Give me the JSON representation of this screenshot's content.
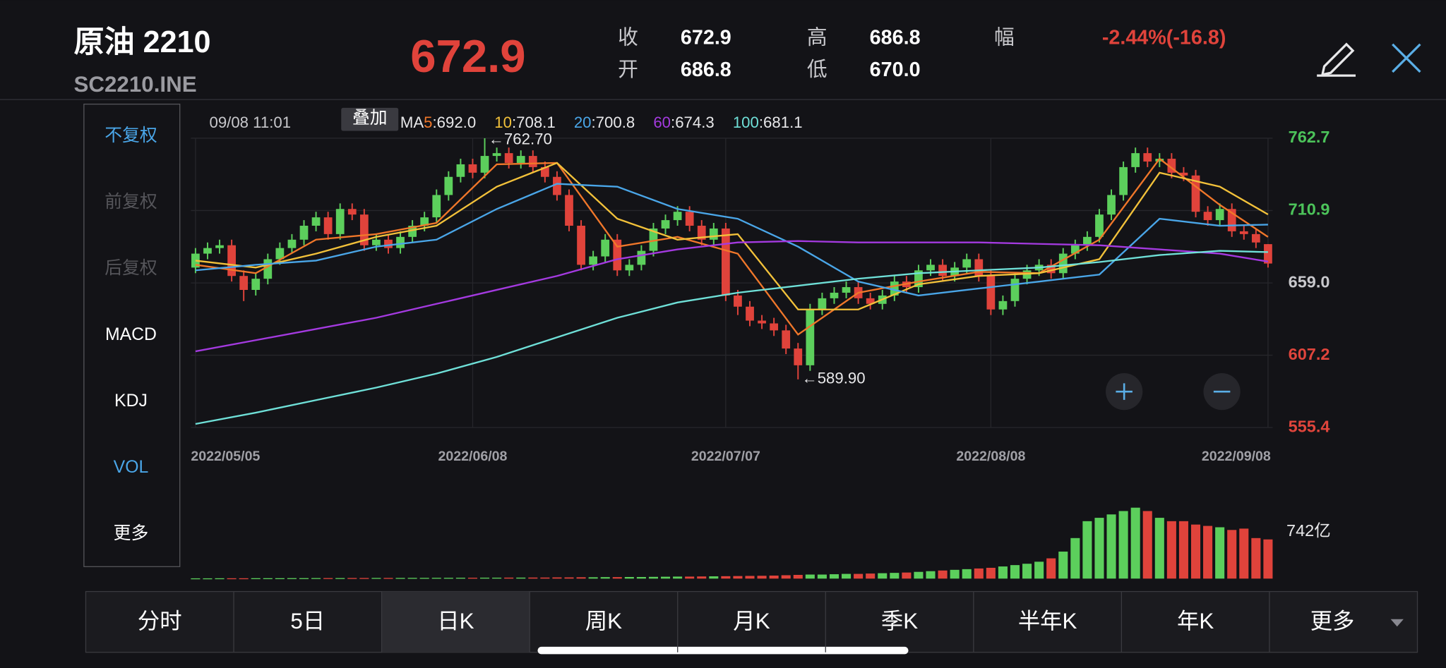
{
  "header": {
    "name": "原油 2210",
    "code": "SC2210.INE",
    "price": "672.9",
    "quote": [
      {
        "label": "收",
        "value": "672.9"
      },
      {
        "label": "开",
        "value": "686.8"
      },
      {
        "label": "高",
        "value": "686.8"
      },
      {
        "label": "低",
        "value": "670.0"
      },
      {
        "label": "幅",
        "value": "-2.44%(-16.8)"
      }
    ]
  },
  "side_menu": [
    "不复权",
    "前复权",
    "后复权",
    "MACD",
    "KDJ",
    "VOL",
    "更多"
  ],
  "info": {
    "time": "09/08 11:01",
    "overlay_button": "叠加",
    "ma_prefix": "MA",
    "ma_separator": ":"
  },
  "chart_data": {
    "type": "candlestick",
    "categories": [
      "2022/05/05",
      null,
      null,
      null,
      null,
      null,
      null,
      null,
      null,
      null,
      null,
      null,
      null,
      null,
      null,
      null,
      null,
      null,
      null,
      null,
      null,
      null,
      null,
      "2022/06/08",
      null,
      null,
      null,
      null,
      null,
      null,
      null,
      null,
      null,
      null,
      null,
      null,
      null,
      null,
      null,
      null,
      null,
      null,
      null,
      null,
      "2022/07/07",
      null,
      null,
      null,
      null,
      null,
      null,
      null,
      null,
      null,
      null,
      null,
      null,
      null,
      null,
      null,
      null,
      null,
      null,
      null,
      null,
      null,
      "2022/08/08",
      null,
      null,
      null,
      null,
      null,
      null,
      null,
      null,
      null,
      null,
      null,
      null,
      null,
      null,
      null,
      null,
      null,
      null,
      null,
      null,
      null,
      null,
      "2022/09/08"
    ],
    "open": [
      670,
      680,
      684,
      686,
      664,
      654,
      662,
      676,
      684,
      690,
      700,
      706,
      694,
      712,
      708,
      686,
      690,
      684,
      692,
      700,
      706,
      722,
      735,
      744,
      738,
      750,
      752,
      745,
      750,
      742,
      735,
      722,
      700,
      672,
      678,
      690,
      668,
      672,
      682,
      698,
      704,
      710,
      700,
      690,
      698,
      650,
      642,
      632,
      630,
      625,
      612,
      600,
      640,
      648,
      652,
      656,
      648,
      644,
      650,
      660,
      656,
      668,
      672,
      664,
      670,
      676,
      664,
      640,
      646,
      662,
      668,
      672,
      666,
      680,
      686,
      692,
      708,
      722,
      742,
      752,
      746,
      748,
      738,
      736,
      710,
      704,
      712,
      696,
      694,
      686.8
    ],
    "close": [
      680,
      684,
      686,
      664,
      654,
      662,
      676,
      684,
      690,
      700,
      706,
      694,
      712,
      708,
      686,
      690,
      684,
      692,
      700,
      706,
      722,
      735,
      744,
      738,
      750,
      752,
      745,
      750,
      742,
      735,
      722,
      700,
      672,
      678,
      690,
      668,
      672,
      682,
      698,
      704,
      710,
      700,
      690,
      698,
      650,
      642,
      632,
      630,
      625,
      612,
      600,
      640,
      648,
      652,
      656,
      648,
      644,
      650,
      660,
      656,
      668,
      672,
      664,
      670,
      676,
      664,
      640,
      646,
      662,
      668,
      672,
      666,
      680,
      686,
      692,
      708,
      722,
      742,
      752,
      746,
      748,
      738,
      736,
      710,
      704,
      712,
      696,
      694,
      688,
      672.9
    ],
    "high": [
      684,
      688,
      690,
      690,
      668,
      666,
      680,
      688,
      694,
      704,
      710,
      710,
      716,
      716,
      712,
      694,
      694,
      696,
      704,
      710,
      726,
      739,
      748,
      748,
      762.7,
      756,
      756,
      754,
      754,
      746,
      739,
      726,
      704,
      682,
      694,
      694,
      676,
      686,
      702,
      708,
      714,
      714,
      704,
      702,
      702,
      654,
      646,
      636,
      634,
      629,
      616,
      644,
      652,
      656,
      660,
      660,
      652,
      654,
      664,
      664,
      672,
      676,
      676,
      674,
      680,
      680,
      668,
      650,
      666,
      672,
      676,
      676,
      684,
      690,
      696,
      712,
      726,
      746,
      756,
      756,
      752,
      752,
      742,
      740,
      714,
      716,
      716,
      700,
      698,
      686.8
    ],
    "low": [
      666,
      676,
      680,
      660,
      646,
      650,
      658,
      672,
      680,
      686,
      696,
      690,
      690,
      704,
      682,
      682,
      680,
      680,
      688,
      696,
      702,
      718,
      731,
      734,
      734,
      746,
      741,
      741,
      738,
      731,
      718,
      696,
      668,
      668,
      674,
      664,
      664,
      668,
      678,
      694,
      700,
      696,
      686,
      686,
      646,
      636,
      628,
      626,
      621,
      608,
      589.9,
      596,
      636,
      644,
      648,
      644,
      640,
      640,
      646,
      652,
      652,
      664,
      660,
      660,
      666,
      660,
      636,
      636,
      642,
      658,
      664,
      662,
      662,
      676,
      682,
      688,
      704,
      718,
      738,
      742,
      742,
      734,
      732,
      706,
      700,
      700,
      692,
      690,
      684,
      670.0
    ],
    "ylim": [
      555.4,
      762.7
    ],
    "yticks": [
      762.7,
      710.9,
      {
        "value": 659,
        "label": "659.0"
      },
      607.2,
      555.4
    ],
    "ytick_colors": [
      "#4cc35a",
      "#4cc35a",
      "#c8c8cc",
      "#e0453c",
      "#e0453c"
    ],
    "up_color": "#5ccf5c",
    "down_color": "#e0433b",
    "grid": true,
    "ma": [
      {
        "name": "5",
        "color": "#f0772a",
        "value_label": "692.0",
        "x": [
          0,
          5,
          10,
          15,
          20,
          25,
          30,
          35,
          40,
          45,
          50,
          55,
          60,
          65,
          70,
          75,
          80,
          85,
          89
        ],
        "values": [
          672,
          666,
          690,
          694,
          702,
          744,
          745,
          685,
          692,
          680,
          622,
          652,
          660,
          667,
          666,
          690,
          748,
          715,
          692.0
        ]
      },
      {
        "name": "10",
        "color": "#f2c13a",
        "value_label": "708.1",
        "x": [
          0,
          5,
          10,
          15,
          20,
          25,
          30,
          35,
          40,
          45,
          50,
          55,
          60,
          65,
          70,
          75,
          80,
          85,
          89
        ],
        "values": [
          675,
          670,
          680,
          692,
          700,
          728,
          745,
          705,
          690,
          694,
          640,
          640,
          658,
          664,
          666,
          676,
          738,
          728,
          708.1
        ]
      },
      {
        "name": "20",
        "color": "#4aa6e8",
        "value_label": "700.8",
        "x": [
          0,
          5,
          10,
          15,
          20,
          25,
          30,
          35,
          40,
          45,
          50,
          55,
          60,
          65,
          70,
          75,
          80,
          85,
          89
        ],
        "values": [
          668,
          672,
          675,
          685,
          690,
          712,
          730,
          728,
          712,
          705,
          685,
          660,
          650,
          655,
          660,
          665,
          705,
          700,
          700.8
        ]
      },
      {
        "name": "60",
        "color": "#a43ae0",
        "value_label": "674.3",
        "x": [
          0,
          5,
          10,
          15,
          20,
          25,
          30,
          35,
          40,
          45,
          50,
          55,
          60,
          65,
          70,
          75,
          80,
          85,
          89
        ],
        "values": [
          610,
          618,
          626,
          634,
          644,
          654,
          664,
          676,
          683,
          688,
          689,
          688,
          688,
          688,
          687,
          686,
          683,
          680,
          674.3
        ]
      },
      {
        "name": "100",
        "color": "#6fe0d8",
        "value_label": "681.1",
        "x": [
          0,
          5,
          10,
          15,
          20,
          25,
          30,
          35,
          40,
          45,
          50,
          55,
          60,
          65,
          70,
          75,
          80,
          85,
          89
        ],
        "values": [
          558,
          566,
          575,
          584,
          594,
          606,
          620,
          634,
          645,
          652,
          657,
          662,
          666,
          668,
          670,
          674,
          679,
          682,
          681.1
        ]
      }
    ],
    "annotations": [
      {
        "value": 762.7,
        "label": "←762.70"
      },
      {
        "value": 589.9,
        "label": "←589.90"
      }
    ],
    "volume": {
      "label": "742亿",
      "ylim": [
        0,
        1200
      ],
      "values": [
        4,
        4,
        5,
        5,
        5,
        6,
        6,
        6,
        7,
        7,
        8,
        8,
        8,
        9,
        9,
        10,
        10,
        10,
        11,
        11,
        12,
        12,
        13,
        13,
        14,
        14,
        15,
        15,
        16,
        16,
        18,
        18,
        20,
        20,
        22,
        22,
        24,
        24,
        26,
        28,
        30,
        30,
        32,
        34,
        36,
        38,
        40,
        42,
        45,
        50,
        55,
        60,
        60,
        65,
        70,
        70,
        75,
        80,
        85,
        90,
        100,
        110,
        120,
        130,
        140,
        150,
        160,
        180,
        200,
        220,
        250,
        300,
        400,
        600,
        850,
        900,
        950,
        1000,
        1050,
        1000,
        900,
        850,
        850,
        800,
        780,
        760,
        720,
        740,
        600,
        580
      ]
    }
  },
  "tabs": [
    "分时",
    "5日",
    "日K",
    "周K",
    "月K",
    "季K",
    "半年K",
    "年K",
    "更多"
  ],
  "selected_tab": "日K"
}
